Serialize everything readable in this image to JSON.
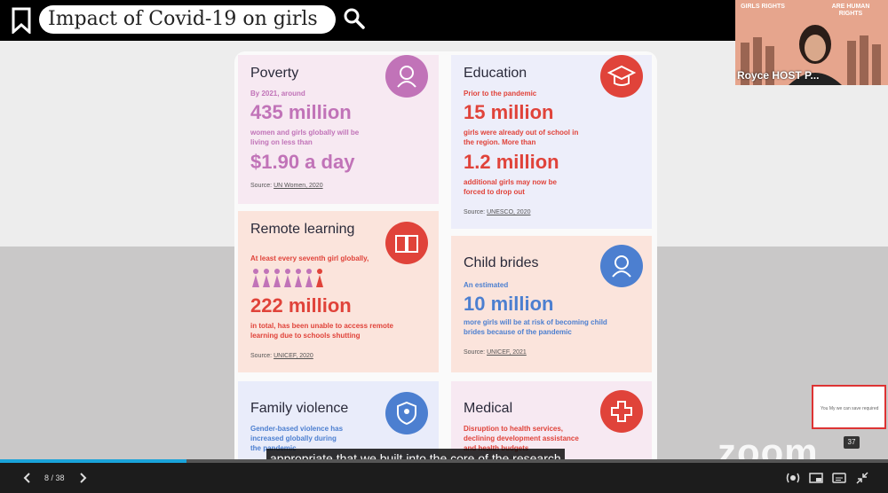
{
  "header": {
    "title": "Impact of Covid-19 on girls"
  },
  "video": {
    "participant_name": "Royce HOST P...",
    "poster_left": "GIRLS RIGHTS",
    "poster_right": "ARE HUMAN RIGHTS"
  },
  "infographic": {
    "poverty": {
      "title": "Poverty",
      "intro": "By 2021, around",
      "big1": "435 million",
      "text1": "women and girls globally will be living on less than",
      "big2": "$1.90 a day",
      "source_label": "Source:",
      "source": "UN Women, 2020"
    },
    "education": {
      "title": "Education",
      "intro": "Prior to the pandemic",
      "big1": "15 million",
      "text1": "girls were already out of school in the region. More than",
      "big2": "1.2 million",
      "text2": "additional girls may now be forced to drop out",
      "source_label": "Source:",
      "source": "UNESCO, 2020"
    },
    "remote": {
      "title": "Remote learning",
      "intro": "At least every seventh girl globally,",
      "big1": "222 million",
      "text1": "in total, has been unable to access remote learning due to schools shutting",
      "source_label": "Source:",
      "source": "UNICEF, 2020"
    },
    "child": {
      "title": "Child brides",
      "intro": "An estimated",
      "big1": "10 million",
      "text1": "more girls will be at risk of becoming child brides because of the pandemic",
      "source_label": "Source:",
      "source": "UNICEF, 2021"
    },
    "family": {
      "title": "Family violence",
      "text1": "Gender-based violence has increased globally during the pandemic"
    },
    "medical": {
      "title": "Medical",
      "text1": "Disruption to health services, declining development assistance and health budgets"
    }
  },
  "thumbnail": {
    "text": "You  My  we can save required",
    "badge": "37"
  },
  "brand": "zoom",
  "caption": "appropriate that we built into the core of the research",
  "player": {
    "page": "8 / 38",
    "progress": 0.21
  },
  "colors": {
    "accent": "#1aa3d9",
    "pink": "#c173b8",
    "red": "#e0433a",
    "blue": "#4c7fd0"
  },
  "icons": [
    "bookmark-icon",
    "search-icon",
    "woman-icon",
    "graduation-cap-icon",
    "book-icon",
    "bride-icon",
    "shield-person-icon",
    "medical-cross-icon",
    "previous-icon",
    "next-icon",
    "audio-icon",
    "picture-in-picture-icon",
    "captions-icon",
    "exit-fullscreen-icon"
  ]
}
